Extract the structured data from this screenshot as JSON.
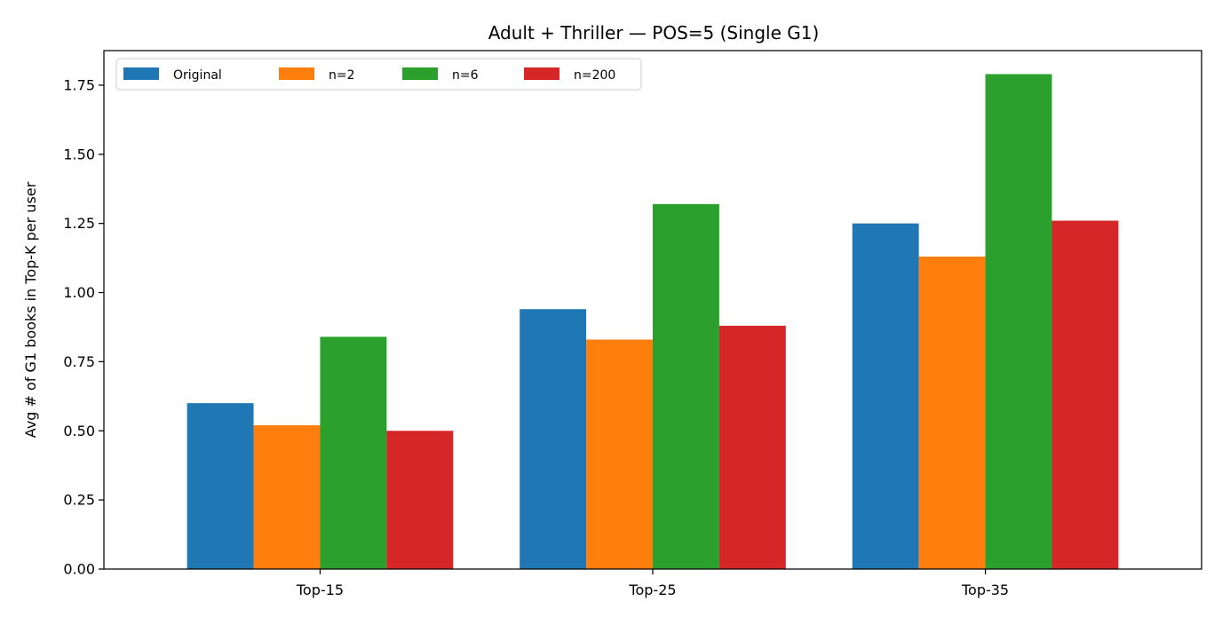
{
  "chart_data": {
    "type": "bar",
    "title": "Adult + Thriller — POS=5 (Single G1)",
    "xlabel": "",
    "ylabel": "Avg # of G1 books in Top-K per user",
    "categories": [
      "Top-15",
      "Top-25",
      "Top-35"
    ],
    "series": [
      {
        "name": "Original",
        "color": "#1f77b4",
        "values": [
          0.6,
          0.94,
          1.25
        ]
      },
      {
        "name": "n=2",
        "color": "#ff7f0e",
        "values": [
          0.52,
          0.83,
          1.13
        ]
      },
      {
        "name": "n=6",
        "color": "#2ca02c",
        "values": [
          0.84,
          1.32,
          1.79
        ]
      },
      {
        "name": "n=200",
        "color": "#d62728",
        "values": [
          0.5,
          0.88,
          1.26
        ]
      }
    ],
    "ylim": [
      0,
      1.875
    ],
    "yticks": [
      "0.00",
      "0.25",
      "0.50",
      "0.75",
      "1.00",
      "1.25",
      "1.50",
      "1.75"
    ],
    "legend_position": "top-left",
    "grid": false
  }
}
